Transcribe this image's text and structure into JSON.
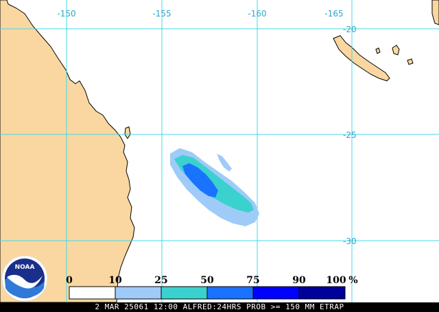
{
  "longitude_labels": [
    "-150",
    "-155",
    "-160",
    "-165"
  ],
  "latitude_labels": [
    "-20",
    "-25",
    "-30"
  ],
  "legend": {
    "labels": [
      "0",
      "10",
      "25",
      "50",
      "75",
      "90",
      "100"
    ],
    "unit": "%",
    "colors": [
      "#ffffff",
      "#9ecbf8",
      "#3bd1cf",
      "#1a73ff",
      "#0000ff",
      "#000099"
    ]
  },
  "caption": "2 MAR 25061 12:00 ALFRED:24HRS PROB >= 150 MM ETRAP",
  "logo_text": "NOAA",
  "colors": {
    "land": "#fad7a0",
    "coast": "#000000",
    "grid": "#40d8e8",
    "grid_label": "#2aa8c8"
  }
}
